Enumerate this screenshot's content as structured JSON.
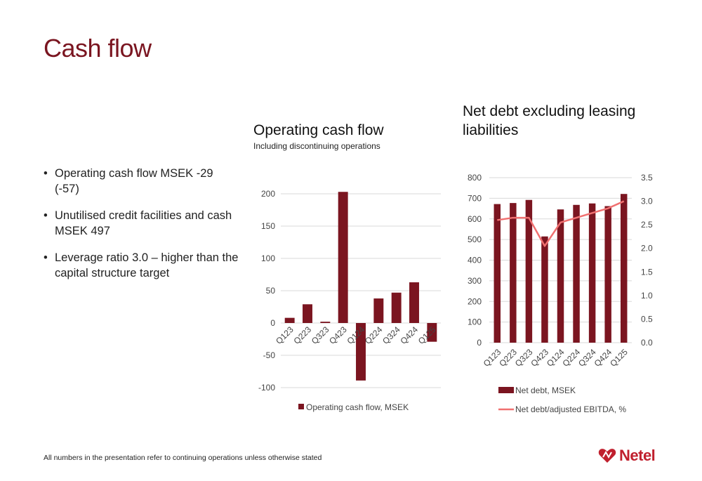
{
  "page": {
    "title": "Cash flow",
    "bullets": [
      "Operating cash flow MSEK -29 (-57)",
      "Unutilised credit facilities and cash MSEK 497",
      "Leverage ratio 3.0 – higher than the capital structure target"
    ],
    "footnote": "All numbers in the presentation refer to continuing operations unless otherwise stated",
    "logo_text": "Netel"
  },
  "colors": {
    "title": "#7a1520",
    "bar": "#7b1520",
    "line": "#f07070",
    "grid": "#d9d9d9"
  },
  "chart_data": [
    {
      "type": "bar",
      "title": "Operating cash flow",
      "subtitle": "Including discontinuing operations",
      "categories": [
        "Q123",
        "Q223",
        "Q323",
        "Q423",
        "Q124",
        "Q224",
        "Q324",
        "Q424",
        "Q125"
      ],
      "series": [
        {
          "name": "Operating cash flow, MSEK",
          "values": [
            8,
            29,
            2,
            203,
            -89,
            38,
            47,
            63,
            -29
          ]
        }
      ],
      "ylim": [
        -100,
        200
      ],
      "yticks": [
        -100,
        -50,
        0,
        50,
        100,
        150,
        200
      ],
      "grid": true,
      "legend": "bottom"
    },
    {
      "type": "bar",
      "title": "Net debt excluding leasing liabilities",
      "categories": [
        "Q123",
        "Q223",
        "Q323",
        "Q423",
        "Q124",
        "Q224",
        "Q324",
        "Q424",
        "Q125"
      ],
      "series": [
        {
          "name": "Net debt, MSEK",
          "type": "bar",
          "axis": "left",
          "values": [
            672,
            677,
            692,
            515,
            646,
            668,
            675,
            662,
            721
          ]
        },
        {
          "name": "Net debt/adjusted EBITDA, %",
          "type": "line",
          "axis": "right",
          "values": [
            2.6,
            2.65,
            2.65,
            2.05,
            2.55,
            2.65,
            2.75,
            2.85,
            3.0
          ]
        }
      ],
      "ylim": [
        0,
        800
      ],
      "yticks": [
        0,
        100,
        200,
        300,
        400,
        500,
        600,
        700,
        800
      ],
      "y2lim": [
        0,
        3.5
      ],
      "y2ticks": [
        "0.0",
        "0.5",
        "1.0",
        "1.5",
        "2.0",
        "2.5",
        "3.0",
        "3.5"
      ],
      "grid": true,
      "legend": "bottom"
    }
  ]
}
